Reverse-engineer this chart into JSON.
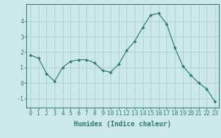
{
  "x": [
    0,
    1,
    2,
    3,
    4,
    5,
    6,
    7,
    8,
    9,
    10,
    11,
    12,
    13,
    14,
    15,
    16,
    17,
    18,
    19,
    20,
    21,
    22,
    23
  ],
  "y": [
    1.8,
    1.6,
    0.6,
    0.1,
    1.0,
    1.4,
    1.5,
    1.5,
    1.3,
    0.8,
    0.7,
    1.2,
    2.1,
    2.7,
    3.6,
    4.4,
    4.5,
    3.8,
    2.3,
    1.1,
    0.5,
    0.0,
    -0.4,
    -1.2
  ],
  "line_color": "#2e7d6e",
  "marker": "D",
  "marker_size": 2,
  "bg_color": "#cce8e8",
  "grid_color": "#aacece",
  "xlabel": "Humidex (Indice chaleur)",
  "xlim": [
    -0.5,
    23.5
  ],
  "ylim": [
    -1.6,
    5.1
  ],
  "yticks": [
    -1,
    0,
    1,
    2,
    3,
    4
  ],
  "xticks": [
    0,
    1,
    2,
    3,
    4,
    5,
    6,
    7,
    8,
    9,
    10,
    11,
    12,
    13,
    14,
    15,
    16,
    17,
    18,
    19,
    20,
    21,
    22,
    23
  ],
  "axis_color": "#2e7d6e",
  "label_fontsize": 7,
  "tick_fontsize": 6
}
